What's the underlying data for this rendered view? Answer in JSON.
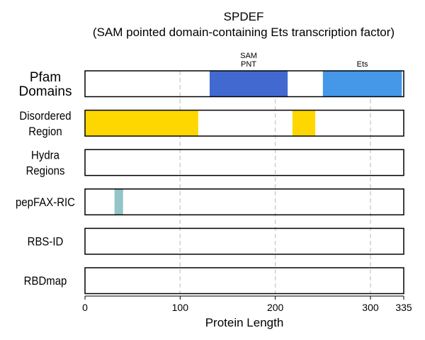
{
  "chart_data": {
    "type": "track",
    "title": "SPDEF",
    "subtitle": "(SAM pointed domain-containing Ets transcription factor)",
    "xlabel": "Protein Length",
    "xlim": [
      0,
      335
    ],
    "xticks": [
      0,
      100,
      200,
      300,
      335
    ],
    "grid_x": [
      100,
      200,
      300
    ],
    "tracks": [
      {
        "label_lines": [
          "Pfam",
          "Domains"
        ],
        "segments": [
          {
            "start": 131,
            "end": 213,
            "color": "#4169cf",
            "label_lines": [
              "SAM",
              "PNT"
            ]
          },
          {
            "start": 250,
            "end": 333,
            "color": "#4597e8",
            "label_lines": [
              "Ets"
            ]
          }
        ]
      },
      {
        "label_lines": [
          "Disordered",
          "Region"
        ],
        "segments": [
          {
            "start": 0,
            "end": 119,
            "color": "#ffd700"
          },
          {
            "start": 218,
            "end": 242,
            "color": "#ffd700"
          }
        ]
      },
      {
        "label_lines": [
          "Hydra",
          "Regions"
        ],
        "segments": []
      },
      {
        "label_lines": [
          "pepFAX-RIC"
        ],
        "segments": [
          {
            "start": 31,
            "end": 40,
            "color": "#93c5c8"
          }
        ]
      },
      {
        "label_lines": [
          "RBS-ID"
        ],
        "segments": []
      },
      {
        "label_lines": [
          "RBDmap"
        ],
        "segments": []
      }
    ]
  }
}
